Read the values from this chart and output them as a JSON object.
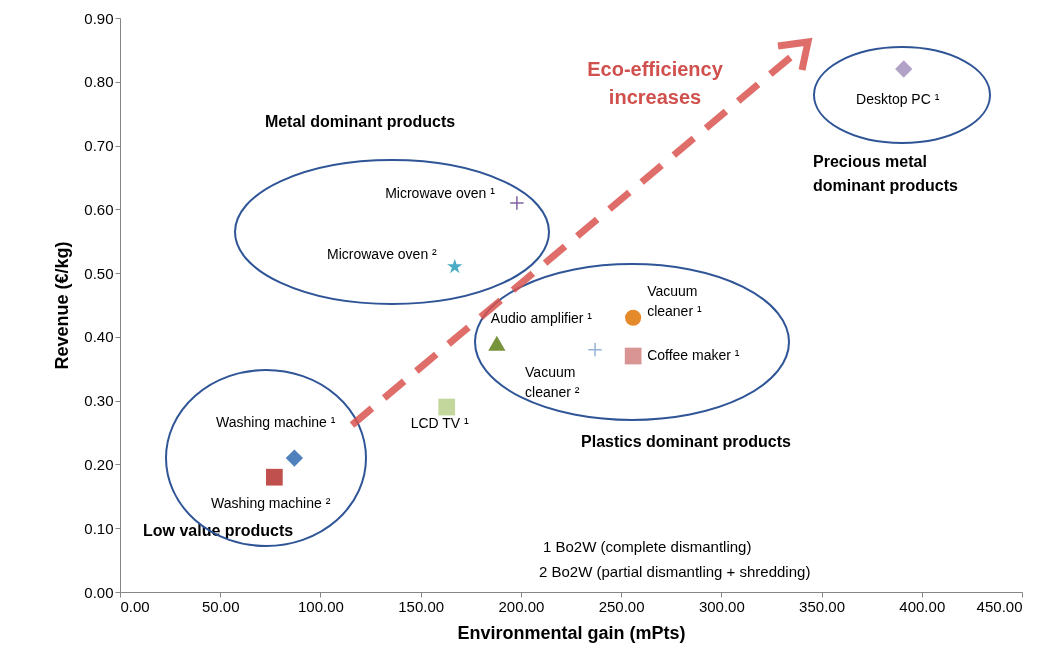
{
  "chart_data": {
    "type": "scatter",
    "xlabel": "Environmental gain (mPts)",
    "ylabel": "Revenue (€/kg)",
    "xlim": [
      0,
      450
    ],
    "ylim": [
      0,
      0.9
    ],
    "xticks": [
      {
        "value": 0,
        "label": "0.00"
      },
      {
        "value": 50,
        "label": "50.00"
      },
      {
        "value": 100,
        "label": "100.00"
      },
      {
        "value": 150,
        "label": "150.00"
      },
      {
        "value": 200,
        "label": "200.00"
      },
      {
        "value": 250,
        "label": "250.00"
      },
      {
        "value": 300,
        "label": "300.00"
      },
      {
        "value": 350,
        "label": "350.00"
      },
      {
        "value": 400,
        "label": "400.00"
      },
      {
        "value": 450,
        "label": "450.00"
      }
    ],
    "yticks": [
      {
        "value": 0,
        "label": "0.00"
      },
      {
        "value": 0.1,
        "label": "0.10"
      },
      {
        "value": 0.2,
        "label": "0.20"
      },
      {
        "value": 0.3,
        "label": "0.30"
      },
      {
        "value": 0.4,
        "label": "0.40"
      },
      {
        "value": 0.5,
        "label": "0.50"
      },
      {
        "value": 0.6,
        "label": "0.60"
      },
      {
        "value": 0.7,
        "label": "0.70"
      },
      {
        "value": 0.8,
        "label": "0.80"
      },
      {
        "value": 0.9,
        "label": "0.90"
      }
    ],
    "series": [
      {
        "name": "Desktop PC ¹",
        "color": "#b3a2c7",
        "marker": "diamond",
        "x": [
          391
        ],
        "values": [
          0.82
        ]
      },
      {
        "name": "Microwave oven ¹",
        "color": "#8064a2",
        "marker": "cross",
        "x": [
          198
        ],
        "values": [
          0.61
        ]
      },
      {
        "name": "Microwave oven ²",
        "color": "#4bacc6",
        "marker": "star",
        "x": [
          167
        ],
        "values": [
          0.51
        ]
      },
      {
        "name": "Vacuum cleaner ¹",
        "color": "#e58a2b",
        "marker": "circle",
        "x": [
          256
        ],
        "values": [
          0.43
        ]
      },
      {
        "name": "Coffee maker ¹",
        "color": "#d99594",
        "marker": "square",
        "x": [
          256
        ],
        "values": [
          0.37
        ]
      },
      {
        "name": "Vacuum cleaner ²",
        "color": "#95b3d7",
        "marker": "cross",
        "x": [
          237
        ],
        "values": [
          0.38
        ]
      },
      {
        "name": "Audio amplifier ¹",
        "color": "#77933c",
        "marker": "triangle",
        "x": [
          188
        ],
        "values": [
          0.39
        ]
      },
      {
        "name": "LCD TV ¹",
        "color": "#c3d69b",
        "marker": "square",
        "x": [
          163
        ],
        "values": [
          0.29
        ]
      },
      {
        "name": "Washing machine ¹",
        "color": "#4f81bd",
        "marker": "diamond",
        "x": [
          87
        ],
        "values": [
          0.21
        ]
      },
      {
        "name": "Washing machine ²",
        "color": "#c0504d",
        "marker": "square",
        "x": [
          77
        ],
        "values": [
          0.18
        ]
      }
    ],
    "annotations": [
      "Metal dominant products",
      "Precious metal dominant products",
      "Plastics dominant products",
      "Low value products",
      "Eco-efficiency increases",
      "1 Bo2W (complete dismantling)",
      "2 Bo2W (partial dismantling + shredding)"
    ]
  }
}
